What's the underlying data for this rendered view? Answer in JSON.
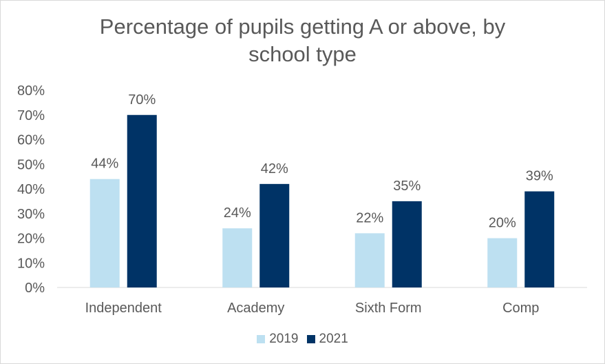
{
  "chart_data": {
    "type": "bar",
    "title_lines": [
      "Percentage of pupils getting A or above, by",
      "school type"
    ],
    "categories": [
      "Independent",
      "Academy",
      "Sixth Form",
      "Comp"
    ],
    "series": [
      {
        "name": "2019",
        "color": "#bde0f1",
        "values": [
          44,
          24,
          22,
          20
        ]
      },
      {
        "name": "2021",
        "color": "#003366",
        "values": [
          70,
          42,
          35,
          39
        ]
      }
    ],
    "value_suffix": "%",
    "ylim": [
      0,
      80
    ],
    "yticks": [
      0,
      10,
      20,
      30,
      40,
      50,
      60,
      70,
      80
    ],
    "grid": false,
    "legend": "bottom"
  }
}
